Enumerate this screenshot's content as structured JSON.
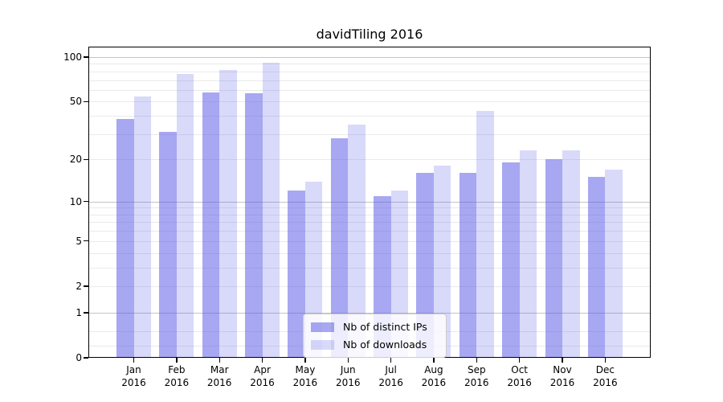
{
  "title": "davidTiling 2016",
  "chart_data": {
    "type": "bar",
    "title": "davidTiling 2016",
    "categories": [
      "Jan 2016",
      "Feb 2016",
      "Mar 2016",
      "Apr 2016",
      "May 2016",
      "Jun 2016",
      "Jul 2016",
      "Aug 2016",
      "Sep 2016",
      "Oct 2016",
      "Nov 2016",
      "Dec 2016"
    ],
    "series": [
      {
        "name": "Nb of distinct IPs",
        "color": "#5050e6",
        "alpha": 0.5,
        "values": [
          38,
          31,
          58,
          57,
          12,
          28,
          11,
          16,
          16,
          19,
          20,
          15
        ]
      },
      {
        "name": "Nb of downloads",
        "color": "#5050e6",
        "alpha": 0.22,
        "values": [
          54,
          77,
          82,
          92,
          14,
          35,
          12,
          18,
          43,
          23,
          23,
          17
        ]
      }
    ],
    "yscale": "symlog",
    "ylim": [
      0,
      117
    ],
    "ytick_values": [
      100,
      50,
      20,
      10,
      5,
      2,
      1,
      0
    ],
    "ytick_labels": [
      "100",
      "50",
      "20",
      "10",
      "5",
      "2",
      "1",
      "0"
    ],
    "major_gridlines": [
      100,
      10,
      1
    ],
    "minor_gridlines": [
      90,
      80,
      70,
      60,
      50,
      40,
      30,
      20,
      9,
      8,
      7,
      6,
      5,
      4,
      3,
      2,
      0.5,
      0.2
    ],
    "grid": "on",
    "legend_position": "lower center"
  },
  "colors": {
    "bar_distinct_ips": "#a9a9f3",
    "bar_downloads": "#d8d8f8",
    "grid_major": "#c4c4c4",
    "grid_minor": "#eaeaea",
    "axis": "#000000",
    "legend_border": "#cccccc",
    "background": "#ffffff"
  }
}
